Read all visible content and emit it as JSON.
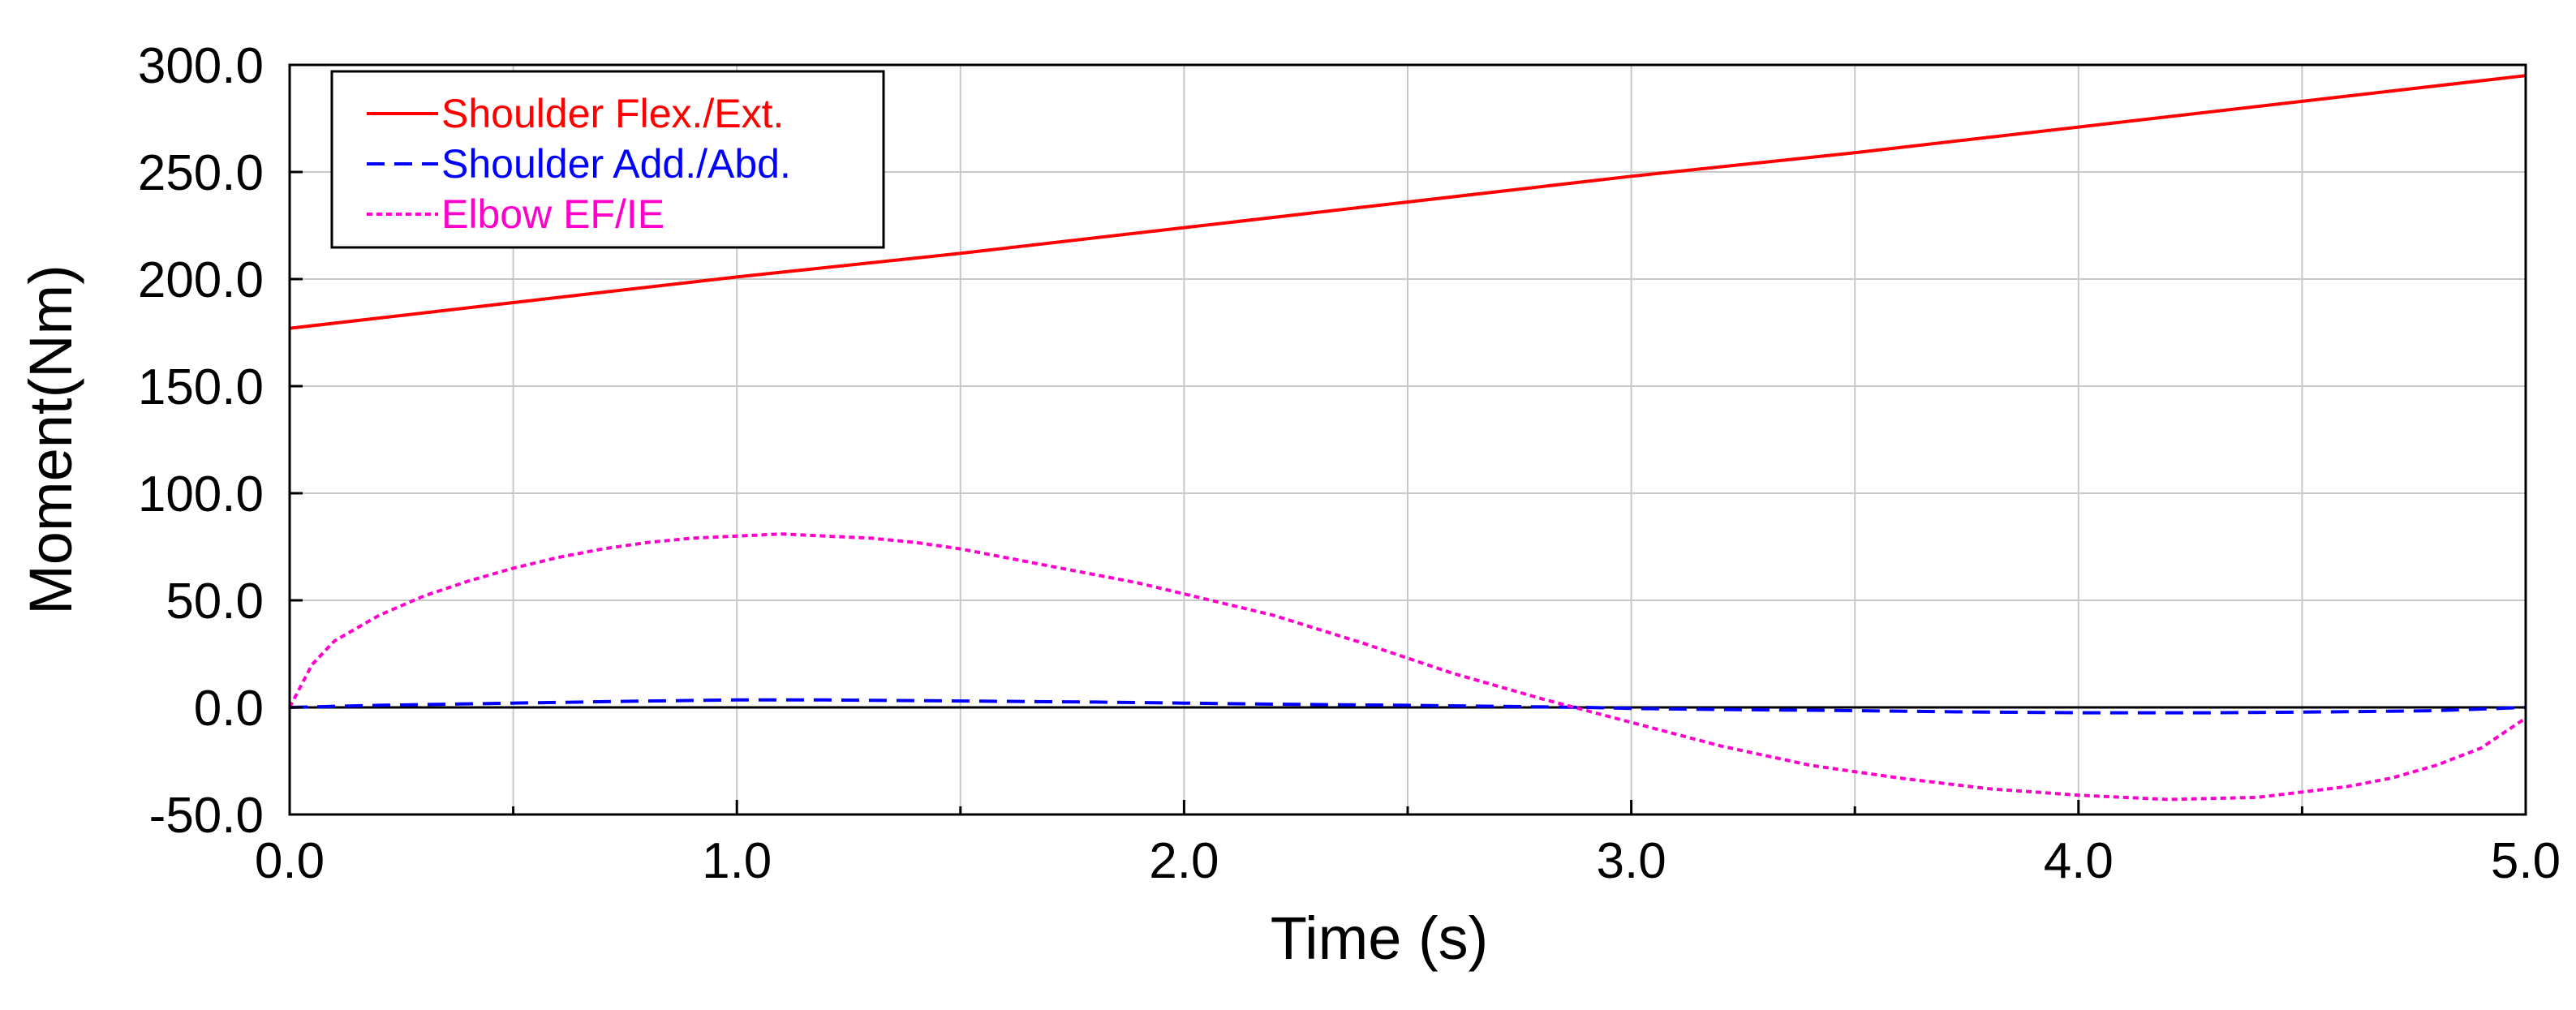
{
  "chart_data": {
    "type": "line",
    "title": "",
    "xlabel": "Time (s)",
    "ylabel": "Moment(Nm)",
    "xlim": [
      0.0,
      5.0
    ],
    "ylim": [
      -50.0,
      300.0
    ],
    "xticks": [
      0.0,
      1.0,
      2.0,
      3.0,
      4.0,
      5.0
    ],
    "xtick_labels": [
      "0.0",
      "1.0",
      "2.0",
      "3.0",
      "4.0",
      "5.0"
    ],
    "yticks": [
      -50.0,
      0.0,
      50.0,
      100.0,
      150.0,
      200.0,
      250.0,
      300.0
    ],
    "ytick_labels": [
      "-50.0",
      "0.0",
      "50.0",
      "100.0",
      "150.0",
      "200.0",
      "250.0",
      "300.0"
    ],
    "grid": true,
    "legend_position": "top-left",
    "series": [
      {
        "name": "Shoulder Flex./Ext.",
        "color": "#ff0000",
        "style": "solid",
        "x": [
          0.0,
          0.5,
          1.0,
          1.5,
          2.0,
          2.5,
          3.0,
          3.5,
          4.0,
          4.5,
          5.0
        ],
        "y": [
          177,
          189,
          201,
          212,
          224,
          236,
          248,
          259,
          271,
          283,
          295
        ]
      },
      {
        "name": "Shoulder Add./Abd.",
        "color": "#0000ff",
        "style": "dashed",
        "x": [
          0.0,
          0.2,
          0.5,
          0.8,
          1.0,
          1.2,
          1.5,
          1.8,
          2.0,
          2.2,
          2.5,
          2.7,
          2.9,
          3.0,
          3.2,
          3.5,
          3.7,
          4.0,
          4.3,
          4.6,
          4.8,
          5.0
        ],
        "y": [
          0.0,
          1.0,
          2.0,
          3.0,
          3.5,
          3.5,
          3.0,
          2.5,
          2.0,
          1.5,
          1.0,
          0.5,
          0.0,
          -0.5,
          -1.0,
          -1.5,
          -2.0,
          -2.5,
          -2.5,
          -2.0,
          -1.5,
          0.0
        ]
      },
      {
        "name": "Elbow EF/IE",
        "color": "#ff00cc",
        "style": "dotted",
        "x": [
          0.0,
          0.05,
          0.1,
          0.2,
          0.3,
          0.4,
          0.5,
          0.6,
          0.7,
          0.8,
          0.9,
          1.0,
          1.1,
          1.2,
          1.3,
          1.4,
          1.5,
          1.6,
          1.7,
          1.8,
          1.9,
          2.0,
          2.2,
          2.4,
          2.6,
          2.8,
          3.0,
          3.2,
          3.4,
          3.6,
          3.8,
          4.0,
          4.2,
          4.4,
          4.6,
          4.7,
          4.8,
          4.9,
          4.95,
          5.0
        ],
        "y": [
          0,
          20,
          31,
          43,
          52,
          59,
          65,
          70,
          74,
          77,
          79,
          80,
          81,
          80,
          79,
          77,
          74,
          70,
          66,
          62,
          58,
          53,
          43,
          30,
          16,
          4,
          -7,
          -18,
          -27,
          -33,
          -38,
          -41,
          -43,
          -42,
          -37,
          -33,
          -27,
          -19,
          -12,
          -5
        ]
      }
    ]
  }
}
